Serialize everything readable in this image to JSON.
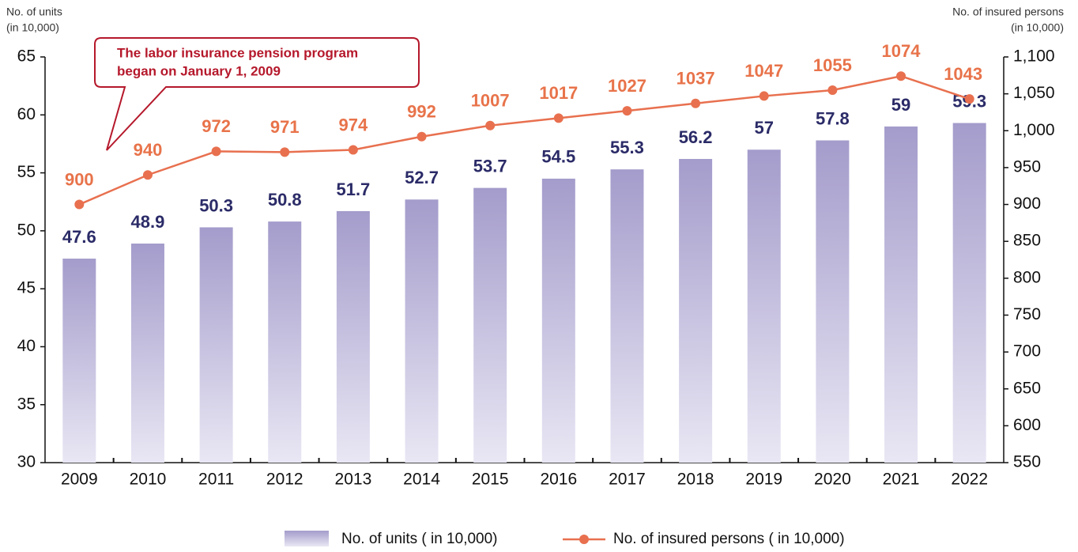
{
  "chart_data": {
    "type": "bar_line",
    "y_title": [
      "No. of units",
      "(in 10,000)"
    ],
    "y2_title": [
      "No. of insured persons",
      "(in 10,000)"
    ],
    "annotation": [
      "The labor insurance pension program",
      "began on January 1, 2009"
    ],
    "categories": [
      "2009",
      "2010",
      "2011",
      "2012",
      "2013",
      "2014",
      "2015",
      "2016",
      "2017",
      "2018",
      "2019",
      "2020",
      "2021",
      "2022"
    ],
    "series": [
      {
        "name": "No. of units ( in 10,000)",
        "type": "bar",
        "color": "#a49ccb",
        "axis": "y",
        "values": [
          47.6,
          48.9,
          50.3,
          50.8,
          51.7,
          52.7,
          53.7,
          54.5,
          55.3,
          56.2,
          57,
          57.8,
          59,
          59.3
        ]
      },
      {
        "name": "No. of insured persons ( in 10,000)",
        "type": "line",
        "color": "#e8704f",
        "axis": "y2",
        "values": [
          900,
          940,
          972,
          971,
          974,
          992,
          1007,
          1017,
          1027,
          1037,
          1047,
          1055,
          1074,
          1043
        ]
      }
    ],
    "ylim": [
      30,
      65
    ],
    "yticks": [
      30,
      35,
      40,
      45,
      50,
      55,
      60,
      65
    ],
    "y2lim": [
      550,
      1100
    ],
    "y2ticks": [
      550,
      600,
      650,
      700,
      750,
      800,
      850,
      900,
      950,
      {
        "value": 1000,
        "label": "1,000"
      },
      {
        "value": 1050,
        "label": "1,050"
      },
      {
        "value": 1100,
        "label": "1,100"
      }
    ]
  }
}
